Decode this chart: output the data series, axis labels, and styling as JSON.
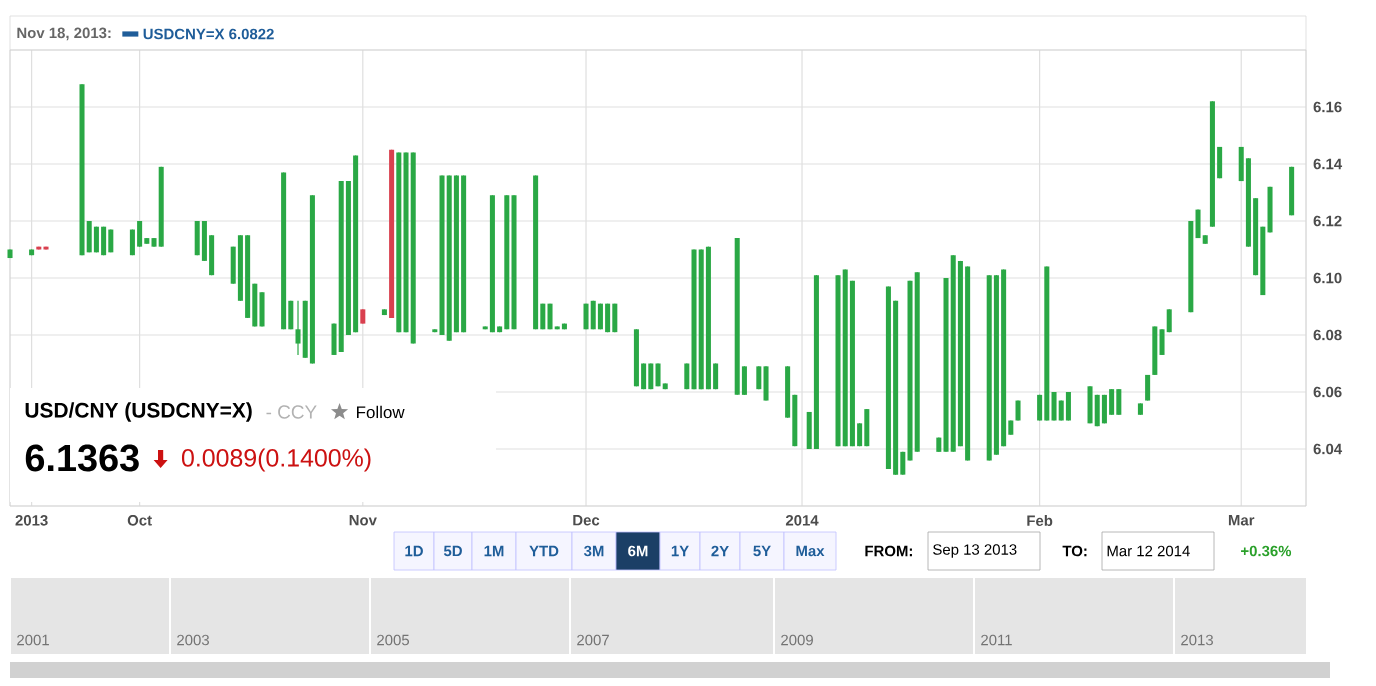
{
  "chart_data": {
    "type": "candlestick",
    "title": "USD/CNY (USDCNY=X)",
    "subtitle": "- CCY",
    "x": [
      "2013-09-13",
      "2013-09-16",
      "2013-09-17",
      "2013-09-18",
      "2013-09-23",
      "2013-09-24",
      "2013-09-25",
      "2013-09-26",
      "2013-09-27",
      "2013-09-30",
      "2013-10-01",
      "2013-10-02",
      "2013-10-03",
      "2013-10-04",
      "2013-10-09",
      "2013-10-10",
      "2013-10-11",
      "2013-10-14",
      "2013-10-15",
      "2013-10-16",
      "2013-10-17",
      "2013-10-18",
      "2013-10-21",
      "2013-10-22",
      "2013-10-23",
      "2013-10-24",
      "2013-10-25",
      "2013-10-28",
      "2013-10-29",
      "2013-10-30",
      "2013-10-31",
      "2013-11-01",
      "2013-11-04",
      "2013-11-05",
      "2013-11-06",
      "2013-11-07",
      "2013-11-08",
      "2013-11-11",
      "2013-11-12",
      "2013-11-13",
      "2013-11-14",
      "2013-11-15",
      "2013-11-18",
      "2013-11-19",
      "2013-11-20",
      "2013-11-21",
      "2013-11-22",
      "2013-11-25",
      "2013-11-26",
      "2013-11-27",
      "2013-11-28",
      "2013-11-29",
      "2013-12-02",
      "2013-12-03",
      "2013-12-04",
      "2013-12-05",
      "2013-12-06",
      "2013-12-09",
      "2013-12-10",
      "2013-12-11",
      "2013-12-12",
      "2013-12-13",
      "2013-12-16",
      "2013-12-17",
      "2013-12-18",
      "2013-12-19",
      "2013-12-20",
      "2013-12-23",
      "2013-12-24",
      "2013-12-26",
      "2013-12-27",
      "2013-12-30",
      "2013-12-31",
      "2014-01-02",
      "2014-01-03",
      "2014-01-06",
      "2014-01-07",
      "2014-01-08",
      "2014-01-09",
      "2014-01-10",
      "2014-01-13",
      "2014-01-14",
      "2014-01-15",
      "2014-01-16",
      "2014-01-17",
      "2014-01-20",
      "2014-01-21",
      "2014-01-22",
      "2014-01-23",
      "2014-01-24",
      "2014-01-27",
      "2014-01-28",
      "2014-01-29",
      "2014-01-30",
      "2014-01-31",
      "2014-02-03",
      "2014-02-04",
      "2014-02-05",
      "2014-02-06",
      "2014-02-07",
      "2014-02-10",
      "2014-02-11",
      "2014-02-12",
      "2014-02-13",
      "2014-02-14",
      "2014-02-17",
      "2014-02-18",
      "2014-02-19",
      "2014-02-20",
      "2014-02-21",
      "2014-02-24",
      "2014-02-25",
      "2014-02-26",
      "2014-02-27",
      "2014-02-28",
      "2014-03-03",
      "2014-03-04",
      "2014-03-05",
      "2014-03-06",
      "2014-03-07",
      "2014-03-10"
    ],
    "ohlc": [
      [
        6.107,
        6.11,
        6.107,
        6.11
      ],
      [
        6.108,
        6.11,
        6.108,
        6.11
      ],
      [
        6.111,
        6.111,
        6.11,
        6.11
      ],
      [
        6.111,
        6.111,
        6.11,
        6.11
      ],
      [
        6.108,
        6.168,
        6.108,
        6.168
      ],
      [
        6.109,
        6.12,
        6.109,
        6.12
      ],
      [
        6.109,
        6.118,
        6.109,
        6.118
      ],
      [
        6.108,
        6.118,
        6.108,
        6.118
      ],
      [
        6.109,
        6.117,
        6.109,
        6.117
      ],
      [
        6.108,
        6.117,
        6.108,
        6.117
      ],
      [
        6.111,
        6.12,
        6.111,
        6.12
      ],
      [
        6.112,
        6.114,
        6.112,
        6.114
      ],
      [
        6.111,
        6.114,
        6.111,
        6.114
      ],
      [
        6.111,
        6.139,
        6.111,
        6.139
      ],
      [
        6.108,
        6.12,
        6.108,
        6.12
      ],
      [
        6.106,
        6.12,
        6.106,
        6.12
      ],
      [
        6.101,
        6.115,
        6.101,
        6.115
      ],
      [
        6.098,
        6.111,
        6.098,
        6.111
      ],
      [
        6.092,
        6.115,
        6.092,
        6.115
      ],
      [
        6.086,
        6.115,
        6.086,
        6.115
      ],
      [
        6.083,
        6.098,
        6.083,
        6.098
      ],
      [
        6.083,
        6.095,
        6.083,
        6.095
      ],
      [
        6.082,
        6.137,
        6.082,
        6.137
      ],
      [
        6.082,
        6.092,
        6.082,
        6.092
      ],
      [
        6.077,
        6.092,
        6.073,
        6.082
      ],
      [
        6.072,
        6.092,
        6.072,
        6.092
      ],
      [
        6.07,
        6.129,
        6.07,
        6.129
      ],
      [
        6.073,
        6.084,
        6.073,
        6.084
      ],
      [
        6.074,
        6.134,
        6.074,
        6.134
      ],
      [
        6.08,
        6.134,
        6.08,
        6.134
      ],
      [
        6.081,
        6.143,
        6.081,
        6.143
      ],
      [
        6.089,
        6.089,
        6.084,
        6.084
      ],
      [
        6.087,
        6.089,
        6.087,
        6.089
      ],
      [
        6.145,
        6.145,
        6.086,
        6.086
      ],
      [
        6.081,
        6.144,
        6.081,
        6.144
      ],
      [
        6.081,
        6.144,
        6.081,
        6.144
      ],
      [
        6.077,
        6.144,
        6.077,
        6.144
      ],
      [
        6.081,
        6.082,
        6.081,
        6.082
      ],
      [
        6.08,
        6.136,
        6.08,
        6.136
      ],
      [
        6.078,
        6.136,
        6.078,
        6.136
      ],
      [
        6.081,
        6.136,
        6.081,
        6.136
      ],
      [
        6.081,
        6.136,
        6.081,
        6.136
      ],
      [
        6.082,
        6.083,
        6.082,
        6.083
      ],
      [
        6.081,
        6.129,
        6.081,
        6.129
      ],
      [
        6.081,
        6.083,
        6.081,
        6.083
      ],
      [
        6.082,
        6.129,
        6.082,
        6.129
      ],
      [
        6.082,
        6.129,
        6.082,
        6.129
      ],
      [
        6.082,
        6.136,
        6.082,
        6.136
      ],
      [
        6.082,
        6.091,
        6.082,
        6.091
      ],
      [
        6.082,
        6.091,
        6.082,
        6.091
      ],
      [
        6.082,
        6.083,
        6.082,
        6.083
      ],
      [
        6.082,
        6.084,
        6.082,
        6.084
      ],
      [
        6.082,
        6.091,
        6.082,
        6.091
      ],
      [
        6.082,
        6.092,
        6.082,
        6.092
      ],
      [
        6.082,
        6.091,
        6.082,
        6.091
      ],
      [
        6.081,
        6.091,
        6.081,
        6.091
      ],
      [
        6.081,
        6.091,
        6.081,
        6.091
      ],
      [
        6.062,
        6.082,
        6.062,
        6.082
      ],
      [
        6.061,
        6.07,
        6.061,
        6.07
      ],
      [
        6.061,
        6.07,
        6.061,
        6.07
      ],
      [
        6.062,
        6.07,
        6.062,
        6.07
      ],
      [
        6.061,
        6.063,
        6.061,
        6.063
      ],
      [
        6.061,
        6.07,
        6.061,
        6.07
      ],
      [
        6.061,
        6.11,
        6.061,
        6.11
      ],
      [
        6.061,
        6.11,
        6.061,
        6.11
      ],
      [
        6.061,
        6.111,
        6.061,
        6.111
      ],
      [
        6.061,
        6.07,
        6.061,
        6.07
      ],
      [
        6.059,
        6.114,
        6.059,
        6.114
      ],
      [
        6.059,
        6.069,
        6.059,
        6.069
      ],
      [
        6.061,
        6.069,
        6.061,
        6.069
      ],
      [
        6.057,
        6.069,
        6.057,
        6.069
      ],
      [
        6.051,
        6.069,
        6.051,
        6.069
      ],
      [
        6.041,
        6.059,
        6.041,
        6.059
      ],
      [
        6.04,
        6.053,
        6.04,
        6.053
      ],
      [
        6.04,
        6.101,
        6.04,
        6.101
      ],
      [
        6.041,
        6.101,
        6.041,
        6.101
      ],
      [
        6.041,
        6.103,
        6.041,
        6.103
      ],
      [
        6.041,
        6.099,
        6.041,
        6.099
      ],
      [
        6.041,
        6.049,
        6.041,
        6.049
      ],
      [
        6.041,
        6.054,
        6.041,
        6.054
      ],
      [
        6.033,
        6.097,
        6.033,
        6.097
      ],
      [
        6.031,
        6.092,
        6.031,
        6.092
      ],
      [
        6.031,
        6.039,
        6.031,
        6.039
      ],
      [
        6.036,
        6.099,
        6.036,
        6.099
      ],
      [
        6.039,
        6.102,
        6.039,
        6.102
      ],
      [
        6.039,
        6.044,
        6.039,
        6.044
      ],
      [
        6.039,
        6.1,
        6.039,
        6.1
      ],
      [
        6.039,
        6.108,
        6.039,
        6.108
      ],
      [
        6.041,
        6.106,
        6.041,
        6.106
      ],
      [
        6.036,
        6.104,
        6.036,
        6.104
      ],
      [
        6.036,
        6.101,
        6.036,
        6.101
      ],
      [
        6.038,
        6.101,
        6.038,
        6.101
      ],
      [
        6.041,
        6.103,
        6.041,
        6.103
      ],
      [
        6.045,
        6.05,
        6.045,
        6.05
      ],
      [
        6.05,
        6.057,
        6.05,
        6.057
      ],
      [
        6.05,
        6.059,
        6.05,
        6.059
      ],
      [
        6.05,
        6.104,
        6.05,
        6.104
      ],
      [
        6.05,
        6.06,
        6.05,
        6.06
      ],
      [
        6.05,
        6.057,
        6.05,
        6.057
      ],
      [
        6.05,
        6.06,
        6.05,
        6.06
      ],
      [
        6.049,
        6.062,
        6.049,
        6.062
      ],
      [
        6.048,
        6.059,
        6.048,
        6.059
      ],
      [
        6.049,
        6.059,
        6.049,
        6.059
      ],
      [
        6.052,
        6.061,
        6.052,
        6.061
      ],
      [
        6.052,
        6.061,
        6.052,
        6.061
      ],
      [
        6.052,
        6.056,
        6.052,
        6.056
      ],
      [
        6.057,
        6.066,
        6.057,
        6.066
      ],
      [
        6.066,
        6.083,
        6.066,
        6.083
      ],
      [
        6.073,
        6.082,
        6.073,
        6.082
      ],
      [
        6.081,
        6.089,
        6.081,
        6.089
      ],
      [
        6.088,
        6.12,
        6.088,
        6.12
      ],
      [
        6.114,
        6.124,
        6.114,
        6.124
      ],
      [
        6.112,
        6.115,
        6.112,
        6.115
      ],
      [
        6.118,
        6.162,
        6.118,
        6.162
      ],
      [
        6.135,
        6.146,
        6.135,
        6.146
      ],
      [
        6.134,
        6.146,
        6.134,
        6.146
      ],
      [
        6.111,
        6.142,
        6.111,
        6.142
      ],
      [
        6.101,
        6.128,
        6.101,
        6.128
      ],
      [
        6.094,
        6.118,
        6.094,
        6.118
      ],
      [
        6.116,
        6.132,
        6.116,
        6.132
      ],
      [
        6.122,
        6.139,
        6.122,
        6.139
      ]
    ],
    "colors": [
      "#2aa845",
      "#2aa845",
      "#d9404f",
      "#d9404f",
      "#2aa845",
      "#2aa845",
      "#2aa845",
      "#2aa845",
      "#2aa845",
      "#2aa845",
      "#2aa845",
      "#2aa845",
      "#2aa845",
      "#2aa845",
      "#2aa845",
      "#2aa845",
      "#2aa845",
      "#2aa845",
      "#2aa845",
      "#2aa845",
      "#2aa845",
      "#2aa845",
      "#2aa845",
      "#2aa845",
      "#2aa845",
      "#2aa845",
      "#2aa845",
      "#2aa845",
      "#2aa845",
      "#2aa845",
      "#2aa845",
      "#d9404f",
      "#2aa845",
      "#d9404f",
      "#2aa845",
      "#2aa845",
      "#2aa845",
      "#2aa845",
      "#2aa845",
      "#2aa845",
      "#2aa845",
      "#2aa845",
      "#2aa845",
      "#2aa845",
      "#2aa845",
      "#2aa845",
      "#2aa845",
      "#2aa845",
      "#2aa845",
      "#2aa845",
      "#2aa845",
      "#2aa845",
      "#2aa845",
      "#2aa845",
      "#2aa845",
      "#2aa845",
      "#2aa845",
      "#2aa845",
      "#2aa845",
      "#2aa845",
      "#2aa845",
      "#2aa845",
      "#2aa845",
      "#2aa845",
      "#2aa845",
      "#2aa845",
      "#2aa845",
      "#2aa845",
      "#2aa845",
      "#2aa845",
      "#2aa845",
      "#2aa845",
      "#2aa845",
      "#2aa845",
      "#2aa845",
      "#2aa845",
      "#2aa845",
      "#2aa845",
      "#2aa845",
      "#2aa845",
      "#2aa845",
      "#2aa845",
      "#2aa845",
      "#2aa845",
      "#2aa845",
      "#2aa845",
      "#2aa845",
      "#2aa845",
      "#2aa845",
      "#2aa845",
      "#2aa845",
      "#2aa845",
      "#2aa845",
      "#2aa845",
      "#2aa845",
      "#2aa845",
      "#2aa845",
      "#2aa845",
      "#2aa845",
      "#2aa845",
      "#2aa845",
      "#2aa845",
      "#2aa845",
      "#2aa845",
      "#2aa845",
      "#2aa845",
      "#2aa845",
      "#2aa845",
      "#2aa845",
      "#2aa845",
      "#2aa845",
      "#2aa845",
      "#2aa845",
      "#2aa845",
      "#2aa845",
      "#2aa845",
      "#2aa845",
      "#2aa845",
      "#2aa845",
      "#2aa845",
      "#2aa845"
    ],
    "xlim": [
      "2013-09-13",
      "2014-03-12"
    ],
    "xticks": [
      {
        "value": "2013-09-16",
        "label": "2013"
      },
      {
        "value": "2013-10-01",
        "label": "Oct"
      },
      {
        "value": "2013-11-01",
        "label": "Nov"
      },
      {
        "value": "2013-12-02",
        "label": "Dec"
      },
      {
        "value": "2014-01-01",
        "label": "2014"
      },
      {
        "value": "2014-02-03",
        "label": "Feb"
      },
      {
        "value": "2014-03-03",
        "label": "Mar"
      }
    ],
    "ylim": [
      6.02,
      6.18
    ],
    "yticks": [
      6.04,
      6.06,
      6.08,
      {
        "value": 6.1,
        "label": "6.10"
      },
      6.12,
      6.14,
      6.16
    ],
    "grid": true,
    "annotations": [
      "Nov 18, 2013:",
      "USDCNY=X 6.0822",
      "Follow",
      "6.1363",
      "0.0089(0.1400%)",
      "1D",
      "5D",
      "1M",
      "YTD",
      "3M",
      "6M",
      "1Y",
      "2Y",
      "5Y",
      "Max",
      "FROM:",
      "Sep 13 2013",
      "TO:",
      "Mar 12 2014",
      "+0.36%",
      "2001",
      "2003",
      "2005",
      "2007",
      "2009",
      "2011",
      "2013"
    ]
  }
}
